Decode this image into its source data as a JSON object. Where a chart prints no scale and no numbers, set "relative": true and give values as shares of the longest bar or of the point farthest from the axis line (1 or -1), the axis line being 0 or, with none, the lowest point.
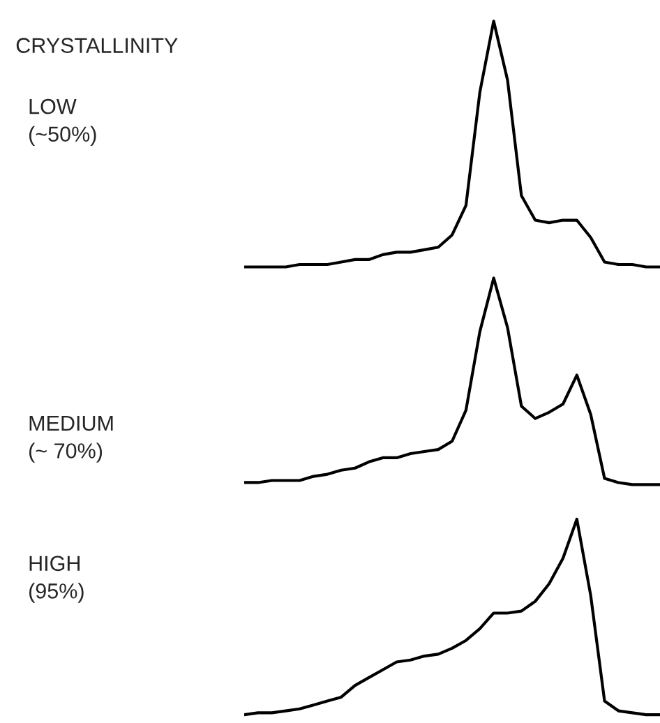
{
  "chart_data": [
    {
      "type": "line",
      "title": "CRYSTALLINITY",
      "ylabel": "LOW\n(~50%)",
      "relative": true,
      "categories": [
        null,
        null,
        null,
        null,
        null,
        null,
        null,
        null,
        null,
        null,
        null,
        null,
        null,
        null,
        null,
        null,
        null,
        null,
        null,
        null,
        null,
        null,
        null,
        null,
        null,
        null,
        null,
        null,
        null,
        null,
        null
      ],
      "series": [
        {
          "color": "#000000",
          "values": [
            0.0,
            0.0,
            0.0,
            0.0,
            0.01,
            0.01,
            0.01,
            0.02,
            0.03,
            0.03,
            0.05,
            0.06,
            0.06,
            0.07,
            0.08,
            0.13,
            0.25,
            0.71,
            1.0,
            0.76,
            0.29,
            0.19,
            0.18,
            0.19,
            0.19,
            0.12,
            0.02,
            0.01,
            0.01,
            0.0,
            0.0
          ]
        }
      ]
    },
    {
      "type": "line",
      "ylabel": "MEDIUM\n(~ 70%)",
      "relative": true,
      "categories": [
        null,
        null,
        null,
        null,
        null,
        null,
        null,
        null,
        null,
        null,
        null,
        null,
        null,
        null,
        null,
        null,
        null,
        null,
        null,
        null,
        null,
        null,
        null,
        null,
        null,
        null,
        null,
        null,
        null,
        null,
        null
      ],
      "series": [
        {
          "color": "#000000",
          "values": [
            0.01,
            0.01,
            0.02,
            0.02,
            0.02,
            0.04,
            0.05,
            0.07,
            0.08,
            0.11,
            0.13,
            0.13,
            0.15,
            0.16,
            0.17,
            0.21,
            0.36,
            0.74,
            1.0,
            0.76,
            0.38,
            0.32,
            0.35,
            0.39,
            0.53,
            0.34,
            0.03,
            0.01,
            0.0,
            0.0,
            0.0
          ]
        }
      ]
    },
    {
      "type": "line",
      "ylabel": "HIGH\n(95%)",
      "relative": true,
      "categories": [
        null,
        null,
        null,
        null,
        null,
        null,
        null,
        null,
        null,
        null,
        null,
        null,
        null,
        null,
        null,
        null,
        null,
        null,
        null,
        null,
        null,
        null,
        null,
        null,
        null,
        null,
        null,
        null,
        null,
        null,
        null
      ],
      "series": [
        {
          "color": "#000000",
          "values": [
            0.0,
            0.01,
            0.01,
            0.02,
            0.03,
            0.05,
            0.07,
            0.09,
            0.15,
            0.19,
            0.23,
            0.27,
            0.28,
            0.3,
            0.31,
            0.34,
            0.38,
            0.44,
            0.52,
            0.52,
            0.53,
            0.58,
            0.67,
            0.8,
            1.0,
            0.61,
            0.07,
            0.02,
            0.01,
            0.0,
            0.0
          ]
        }
      ]
    }
  ]
}
